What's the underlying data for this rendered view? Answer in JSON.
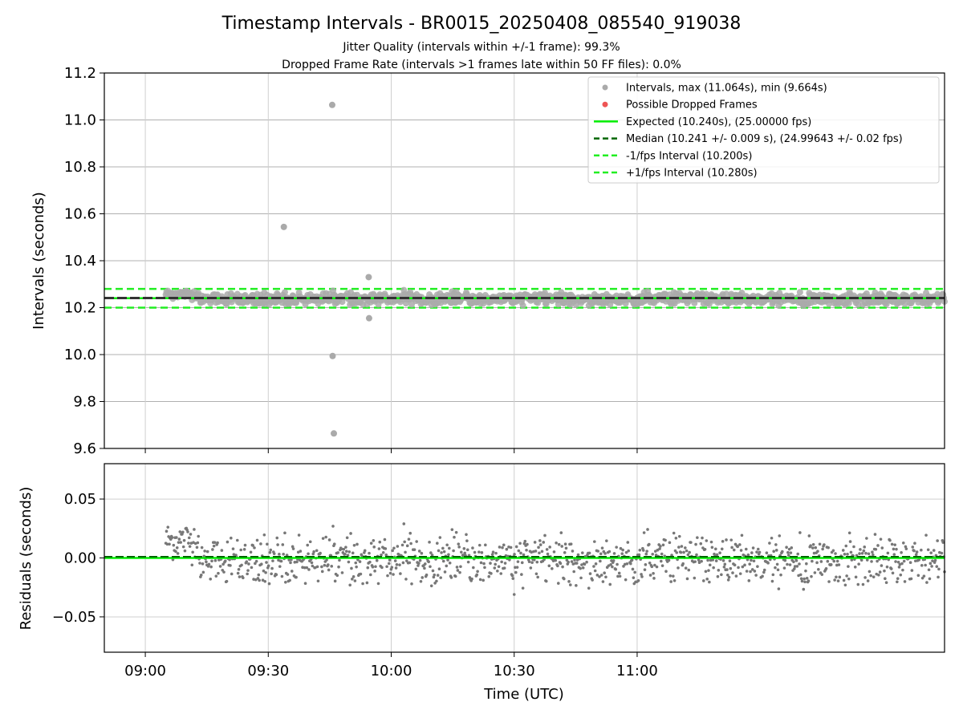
{
  "chart_data": [
    {
      "type": "scatter",
      "panel": "intervals",
      "title": "Timestamp Intervals - BR0015_20250408_085540_919038",
      "subtitle_lines": [
        "Jitter Quality (intervals within +/-1 frame): 99.3%",
        "Dropped Frame Rate (intervals >1 frames late within 50 FF files): 0.0%"
      ],
      "ylabel": "Intervals (seconds)",
      "ylim": [
        9.6,
        11.2
      ],
      "yticks": [
        9.6,
        9.8,
        10.0,
        10.2,
        10.4,
        10.6,
        10.8,
        11.0,
        11.2
      ],
      "ytick_labels": [
        "9.6",
        "9.8",
        "10.0",
        "10.2",
        "10.4",
        "10.6",
        "10.8",
        "11.0",
        "11.2"
      ],
      "xlim_minutes": [
        530,
        735
      ],
      "grid": true,
      "legend_placement": "top-right",
      "legend": [
        {
          "label": "Intervals, max (11.064s), min (9.664s)",
          "marker": "dot",
          "color": "#aaaaaa"
        },
        {
          "label": "Possible Dropped Frames",
          "marker": "dot",
          "color": "#ee5555"
        },
        {
          "label": "Expected (10.240s), (25.00000 fps)",
          "marker": "solid",
          "color": "#00ee00"
        },
        {
          "label": "Median (10.241 +/- 0.009 s), (24.99643 +/- 0.02 fps)",
          "marker": "dashed",
          "color": "#006600"
        },
        {
          "label": "-1/fps Interval (10.200s)",
          "marker": "dashed",
          "color": "#22ee22"
        },
        {
          "label": "+1/fps Interval (10.280s)",
          "marker": "dashed",
          "color": "#22ee22"
        }
      ],
      "lines": {
        "expected": 10.24,
        "median": 10.241,
        "lower": 10.2,
        "upper": 10.28
      },
      "series_x_range": [
        545,
        735
      ],
      "outliers": [
        {
          "x": 573.8,
          "y": 10.544
        },
        {
          "x": 585.6,
          "y": 11.064
        },
        {
          "x": 585.7,
          "y": 9.994
        },
        {
          "x": 586.0,
          "y": 9.664
        },
        {
          "x": 594.5,
          "y": 10.33
        },
        {
          "x": 594.6,
          "y": 10.155
        }
      ]
    },
    {
      "type": "scatter",
      "panel": "residuals",
      "ylabel": "Residuals (seconds)",
      "xlabel": "Time (UTC)",
      "ylim": [
        -0.08,
        0.08
      ],
      "yticks": [
        -0.05,
        0.0,
        0.05
      ],
      "ytick_labels": [
        "−0.05",
        "0.00",
        "0.05"
      ],
      "xticks_minutes": [
        540,
        570,
        600,
        630,
        660
      ],
      "xtick_labels": [
        "09:00",
        "09:30",
        "10:00",
        "10:30",
        "11:00"
      ],
      "grid": true,
      "lines": {
        "zero": 0.0,
        "median": 0.001
      }
    }
  ],
  "colors": {
    "points": "#aaaaaa",
    "residual_points": "#777777",
    "expected": "#00ee00",
    "median": "#006600",
    "band": "#22ee22",
    "grid": "#b0b0b0"
  }
}
